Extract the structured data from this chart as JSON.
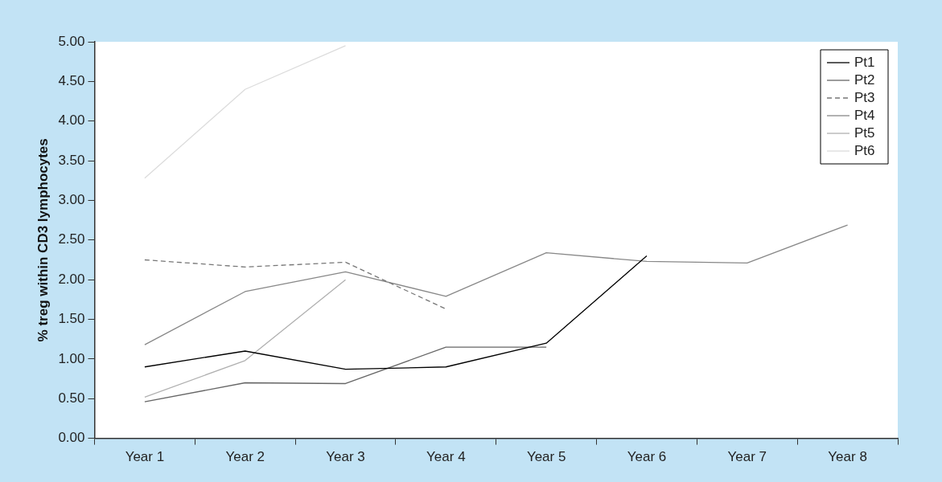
{
  "chart_data": {
    "type": "line",
    "ylabel": "% treg within CD3 lymphocytes",
    "categories": [
      "Year 1",
      "Year 2",
      "Year 3",
      "Year 4",
      "Year 5",
      "Year 6",
      "Year 7",
      "Year 8"
    ],
    "series": [
      {
        "name": "Pt1",
        "color": "#000000",
        "values": [
          0.9,
          1.1,
          0.87,
          0.9,
          1.2,
          2.3,
          null,
          null
        ]
      },
      {
        "name": "Pt2",
        "color": "#666666",
        "values": [
          0.46,
          0.7,
          0.69,
          1.15,
          1.15,
          null,
          null,
          null
        ]
      },
      {
        "name": "Pt3",
        "color": "#777777",
        "line_style": "dashed",
        "values": [
          2.25,
          2.16,
          2.22,
          1.63,
          null,
          null,
          null,
          null
        ]
      },
      {
        "name": "Pt4",
        "color": "#888888",
        "values": [
          1.18,
          1.85,
          2.1,
          1.79,
          2.34,
          2.23,
          2.21,
          2.69
        ]
      },
      {
        "name": "Pt5",
        "color": "#b0b0b0",
        "values": [
          0.52,
          0.98,
          2.0,
          null,
          null,
          null,
          null,
          null
        ]
      },
      {
        "name": "Pt6",
        "color": "#dcdcdc",
        "values": [
          3.28,
          4.4,
          4.95,
          null,
          null,
          null,
          null,
          null
        ]
      }
    ],
    "ylim": [
      0,
      5
    ],
    "yticks": [
      {
        "value": 0,
        "label": "0.00"
      },
      {
        "value": 0.5,
        "label": "0.50"
      },
      {
        "value": 1,
        "label": "1.00"
      },
      {
        "value": 1.5,
        "label": "1.50"
      },
      {
        "value": 2,
        "label": "2.00"
      },
      {
        "value": 2.5,
        "label": "2.50"
      },
      {
        "value": 3,
        "label": "3.00"
      },
      {
        "value": 3.5,
        "label": "3.50"
      },
      {
        "value": 4,
        "label": "4.00"
      },
      {
        "value": 4.5,
        "label": "4.50"
      },
      {
        "value": 5,
        "label": "5.00"
      }
    ],
    "grid": false,
    "legend": "top right",
    "marker": "none"
  }
}
